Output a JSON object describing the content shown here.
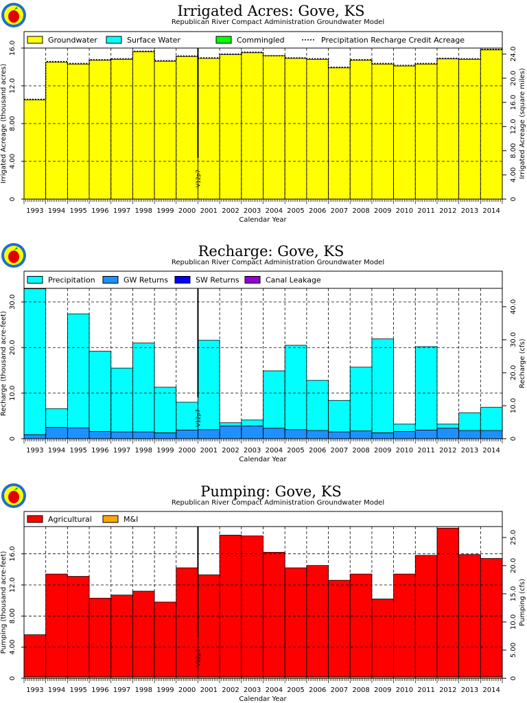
{
  "chart_data": [
    {
      "type": "bar",
      "title": "Irrigated Acres: Gove, KS",
      "subtitle": "Republican River Compact Administration Groundwater Model",
      "xlabel": "Calendar Year",
      "ylabel": "Irrigated Acreage (thousand acres)",
      "ylabel_right": "Irrigated Acreage (square miles)",
      "ylim": [
        0,
        16
      ],
      "yticks": [
        "0",
        "4.00",
        "8.00",
        "12.0",
        "16.0"
      ],
      "yticks_right": [
        "0",
        "4.00",
        "8.00",
        "12.0",
        "16.0",
        "20.0",
        "24.0"
      ],
      "right_factor": 1.5625,
      "version_marker": "V12p7",
      "categories": [
        "1993",
        "1994",
        "1995",
        "1996",
        "1997",
        "1998",
        "1999",
        "2000",
        "2001",
        "2002",
        "2003",
        "2004",
        "2005",
        "2006",
        "2007",
        "2008",
        "2009",
        "2010",
        "2011",
        "2012",
        "2013",
        "2014"
      ],
      "legend": [
        {
          "label": "Groundwater",
          "color": "#ffff00"
        },
        {
          "label": "Surface Water",
          "color": "#00ffff"
        },
        {
          "label": "Commingled",
          "color": "#00ff00"
        },
        {
          "label": "Precipitation Recharge Credit Acreage",
          "color": "dashed"
        }
      ],
      "series": [
        {
          "name": "Groundwater",
          "color": "#ffff00",
          "values": [
            10.5,
            14.5,
            14.3,
            14.7,
            14.8,
            15.6,
            14.6,
            15.1,
            14.9,
            15.3,
            15.5,
            15.2,
            14.9,
            14.8,
            13.9,
            14.7,
            14.3,
            14.1,
            14.3,
            14.85,
            14.8,
            15.8
          ]
        },
        {
          "name": "Surface Water",
          "color": "#00ffff",
          "values": [
            0,
            0,
            0,
            0,
            0,
            0,
            0,
            0,
            0,
            0,
            0,
            0,
            0,
            0,
            0,
            0,
            0,
            0,
            0,
            0,
            0,
            0
          ]
        },
        {
          "name": "Commingled",
          "color": "#00ff00",
          "values": [
            0,
            0,
            0,
            0,
            0,
            0,
            0,
            0,
            0,
            0,
            0,
            0,
            0,
            0,
            0,
            0,
            0,
            0,
            0,
            0,
            0,
            0
          ]
        }
      ],
      "dashed_line": {
        "name": "Precipitation Recharge Credit Acreage",
        "values": [
          10.5,
          14.5,
          14.3,
          14.7,
          14.8,
          15.6,
          14.6,
          15.1,
          14.9,
          15.3,
          15.5,
          15.1,
          14.9,
          14.8,
          13.9,
          14.7,
          14.3,
          14.1,
          14.3,
          14.85,
          14.8,
          15.8
        ]
      }
    },
    {
      "type": "bar",
      "title": "Recharge: Gove, KS",
      "subtitle": "Republican River Compact Administration Groundwater Model",
      "xlabel": "Calendar Year",
      "ylabel": "Recharge (thousand acre-feet)",
      "ylabel_right": "Recharge (cfs)",
      "ylim": [
        0,
        33
      ],
      "yticks": [
        "0",
        "10.0",
        "20.0",
        "30.0"
      ],
      "yticks_right": [
        "0",
        "10.0",
        "20.0",
        "30.0",
        "40.0"
      ],
      "right_factor": 1.3815,
      "version_marker": "V12p7",
      "categories": [
        "1993",
        "1994",
        "1995",
        "1996",
        "1997",
        "1998",
        "1999",
        "2000",
        "2001",
        "2002",
        "2003",
        "2004",
        "2005",
        "2006",
        "2007",
        "2008",
        "2009",
        "2010",
        "2011",
        "2012",
        "2013",
        "2014"
      ],
      "legend": [
        {
          "label": "Precipitation",
          "color": "#00ffff"
        },
        {
          "label": "GW Returns",
          "color": "#1e90ff"
        },
        {
          "label": "SW Returns",
          "color": "#0000ff"
        },
        {
          "label": "Canal Leakage",
          "color": "#9400d3"
        }
      ],
      "series": [
        {
          "name": "GW Returns",
          "color": "#1e90ff",
          "values": [
            0.9,
            2.5,
            2.4,
            1.6,
            1.5,
            1.5,
            1.3,
            1.9,
            2.0,
            2.8,
            2.8,
            2.3,
            2.0,
            1.8,
            1.5,
            1.7,
            1.3,
            1.6,
            1.9,
            2.3,
            1.8,
            1.8
          ]
        },
        {
          "name": "Precipitation",
          "color": "#00ffff",
          "values": [
            32.0,
            4.1,
            25.0,
            17.6,
            14.0,
            19.5,
            10.0,
            6.1,
            19.6,
            0.7,
            1.3,
            12.6,
            18.5,
            11.0,
            6.9,
            14.0,
            20.6,
            1.6,
            18.3,
            0.9,
            3.9,
            5.1
          ]
        },
        {
          "name": "SW Returns",
          "color": "#0000ff",
          "values": [
            0,
            0,
            0,
            0,
            0,
            0,
            0,
            0,
            0,
            0,
            0,
            0,
            0,
            0,
            0,
            0,
            0,
            0,
            0,
            0,
            0,
            0
          ]
        },
        {
          "name": "Canal Leakage",
          "color": "#9400d3",
          "values": [
            0,
            0,
            0,
            0,
            0,
            0,
            0,
            0,
            0,
            0,
            0,
            0,
            0,
            0,
            0,
            0,
            0,
            0,
            0,
            0,
            0,
            0
          ]
        }
      ]
    },
    {
      "type": "bar",
      "title": "Pumping: Gove, KS",
      "subtitle": "Republican River Compact Administration Groundwater Model",
      "xlabel": "Calendar Year",
      "ylabel": "Pumping (thousand acre-feet)",
      "ylabel_right": "Pumping (cfs)",
      "ylim": [
        0,
        19.5
      ],
      "yticks": [
        "0",
        "4.00",
        "8.00",
        "12.0",
        "16.0"
      ],
      "yticks_right": [
        "0",
        "5.00",
        "10.0",
        "15.0",
        "20.0",
        "25.0"
      ],
      "right_factor": 1.3815,
      "version_marker": "V12p7",
      "categories": [
        "1993",
        "1994",
        "1995",
        "1996",
        "1997",
        "1998",
        "1999",
        "2000",
        "2001",
        "2002",
        "2003",
        "2004",
        "2005",
        "2006",
        "2007",
        "2008",
        "2009",
        "2010",
        "2011",
        "2012",
        "2013",
        "2014"
      ],
      "legend": [
        {
          "label": "Agricultural",
          "color": "#ff0000"
        },
        {
          "label": "M&I",
          "color": "#ffa500"
        }
      ],
      "series": [
        {
          "name": "M&I",
          "color": "#ffa500",
          "values": [
            0.2,
            0.2,
            0.2,
            0.2,
            0.2,
            0.2,
            0.2,
            0.2,
            0.2,
            0.2,
            0.2,
            0.2,
            0.2,
            0.2,
            0.2,
            0.2,
            0.2,
            0.2,
            0.2,
            0.2,
            0.2,
            0.2
          ]
        },
        {
          "name": "Agricultural",
          "color": "#ff0000",
          "values": [
            5.4,
            13.2,
            12.9,
            10.1,
            10.5,
            11.0,
            9.6,
            14.0,
            13.1,
            18.2,
            18.1,
            16.0,
            14.0,
            14.3,
            12.4,
            13.2,
            10.0,
            13.2,
            15.6,
            19.1,
            15.7,
            15.2
          ]
        }
      ]
    }
  ]
}
